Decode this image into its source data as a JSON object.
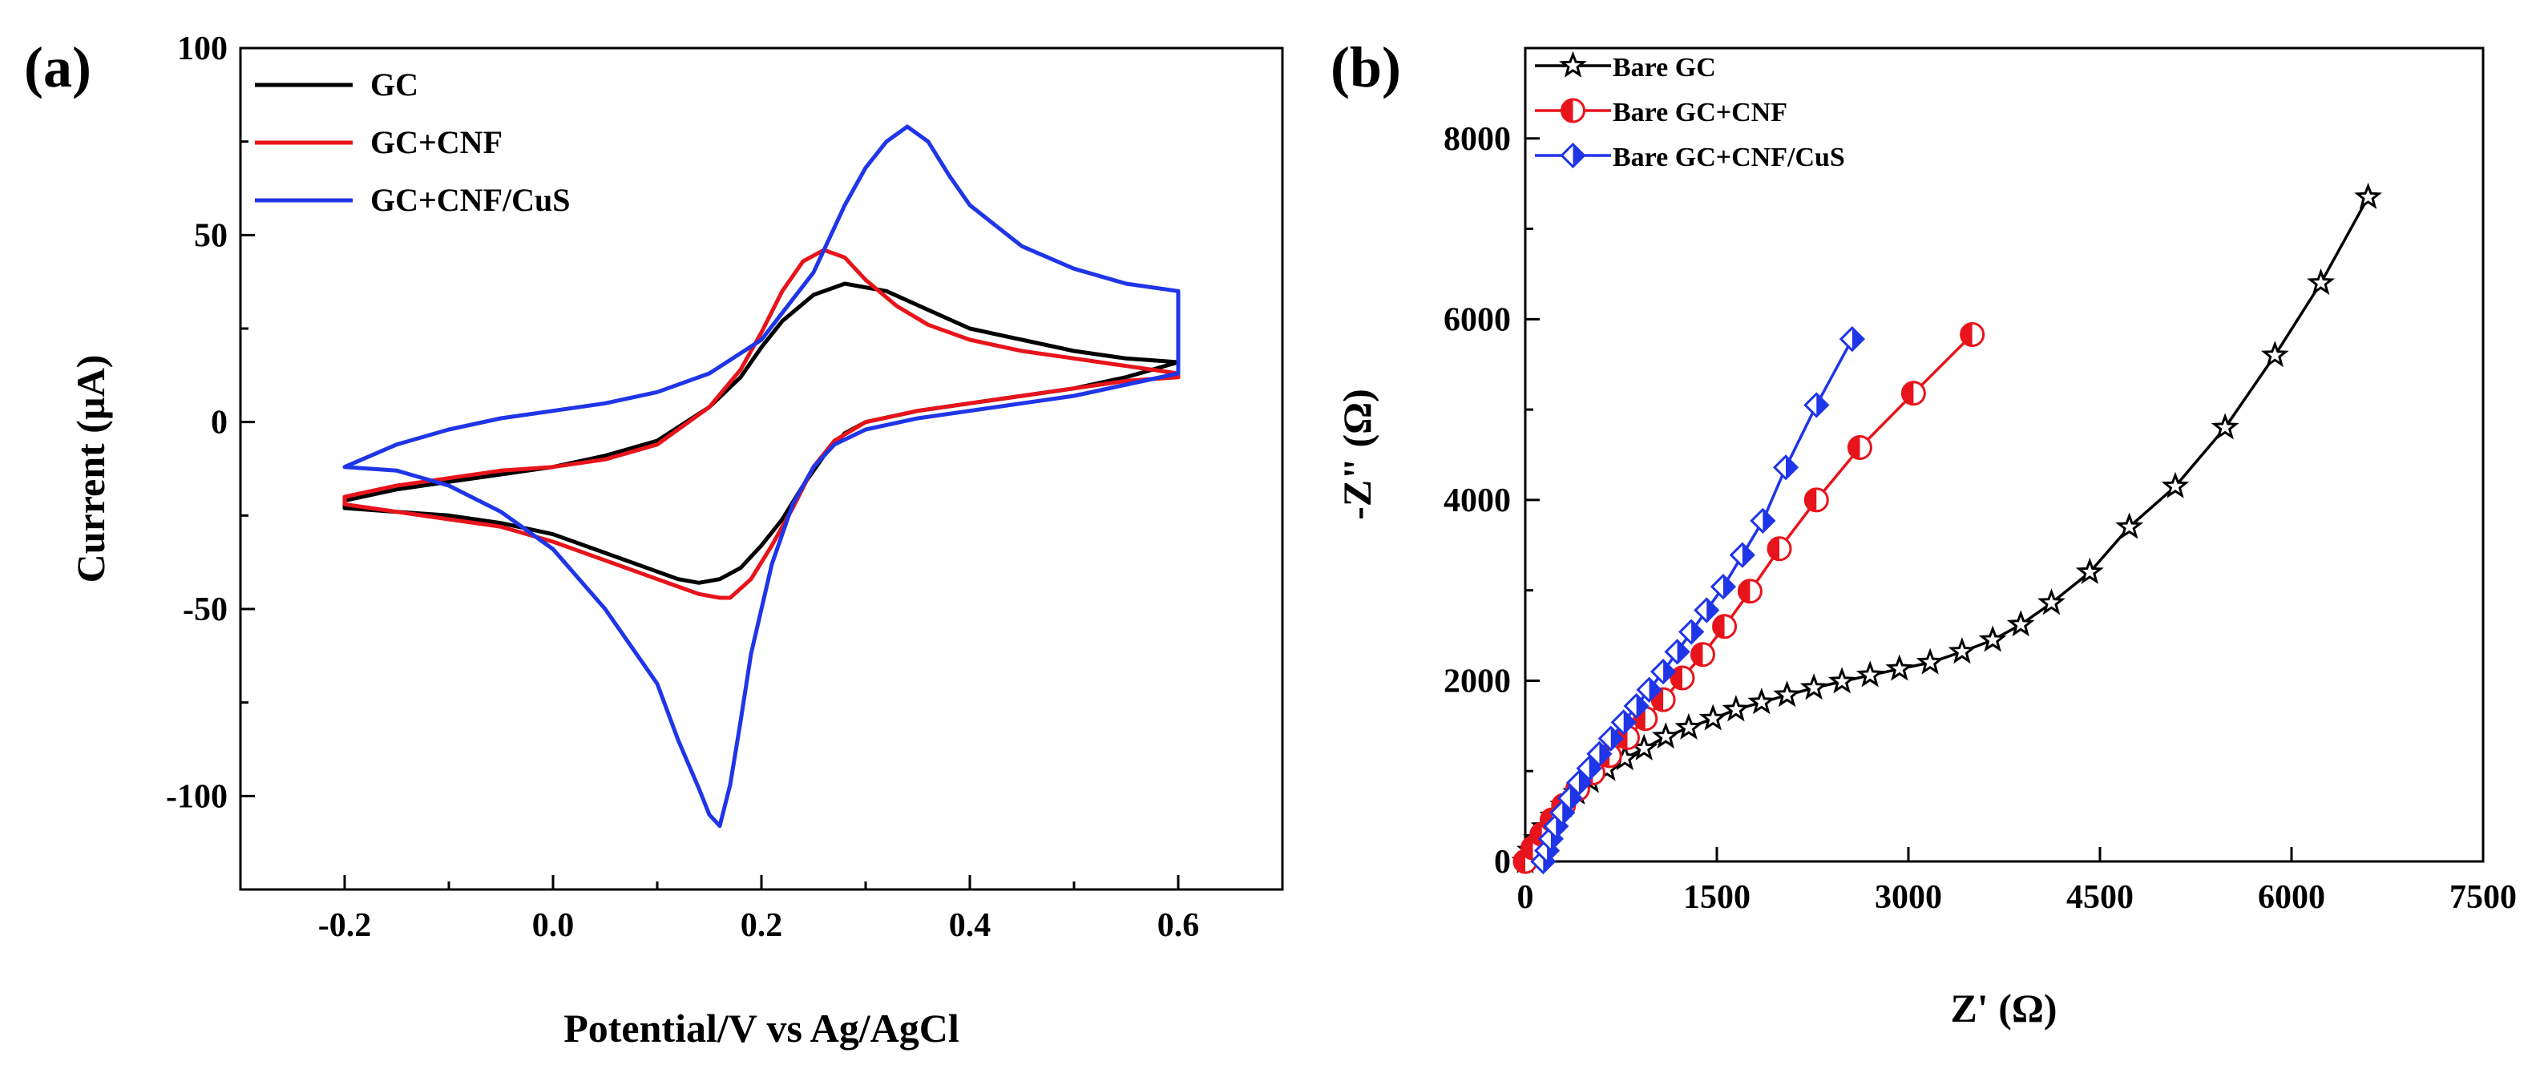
{
  "chart_data": [
    {
      "panel": "(a)",
      "type": "line",
      "title": "",
      "xlabel": "Potential/V vs Ag/AgCl",
      "ylabel": "Current (µA)",
      "xlim": [
        -0.3,
        0.7
      ],
      "ylim": [
        -125,
        100
      ],
      "xticks": [
        -0.2,
        0.0,
        0.2,
        0.4,
        0.6
      ],
      "xtick_labels": [
        "-0.2",
        "0.0",
        "0.2",
        "0.4",
        "0.6"
      ],
      "yticks": [
        -100,
        -50,
        0,
        50,
        100
      ],
      "ytick_labels": [
        "-100",
        "-50",
        "0",
        "50",
        "100"
      ],
      "grid": false,
      "legend_position": "top-left",
      "series": [
        {
          "name": "GC",
          "color": "#000000",
          "x": [
            -0.2,
            -0.15,
            -0.1,
            -0.05,
            0.0,
            0.05,
            0.1,
            0.15,
            0.18,
            0.2,
            0.22,
            0.25,
            0.28,
            0.32,
            0.36,
            0.4,
            0.45,
            0.5,
            0.55,
            0.6,
            0.6,
            0.55,
            0.5,
            0.45,
            0.4,
            0.35,
            0.3,
            0.28,
            0.26,
            0.24,
            0.22,
            0.2,
            0.18,
            0.16,
            0.14,
            0.12,
            0.1,
            0.05,
            0.0,
            -0.05,
            -0.1,
            -0.15,
            -0.2
          ],
          "y": [
            -21,
            -18,
            -16,
            -14,
            -12,
            -9,
            -5,
            4,
            12,
            20,
            27,
            34,
            37,
            35,
            30,
            25,
            22,
            19,
            17,
            16,
            16,
            12,
            9,
            7,
            5,
            3,
            0,
            -3,
            -9,
            -17,
            -26,
            -33,
            -39,
            -42,
            -43,
            -42,
            -40,
            -35,
            -30,
            -27,
            -25,
            -24,
            -23
          ]
        },
        {
          "name": "GC+CNF",
          "color": "#e8141b",
          "x": [
            -0.2,
            -0.15,
            -0.1,
            -0.05,
            0.0,
            0.05,
            0.1,
            0.15,
            0.18,
            0.2,
            0.22,
            0.24,
            0.26,
            0.28,
            0.3,
            0.33,
            0.36,
            0.4,
            0.45,
            0.5,
            0.55,
            0.6,
            0.6,
            0.55,
            0.5,
            0.45,
            0.4,
            0.35,
            0.3,
            0.27,
            0.25,
            0.23,
            0.21,
            0.19,
            0.17,
            0.16,
            0.14,
            0.12,
            0.1,
            0.05,
            0.0,
            -0.05,
            -0.1,
            -0.15,
            -0.2
          ],
          "y": [
            -20,
            -17,
            -15,
            -13,
            -12,
            -10,
            -6,
            4,
            14,
            24,
            35,
            43,
            46,
            44,
            38,
            31,
            26,
            22,
            19,
            17,
            15,
            13,
            12,
            11,
            9,
            7,
            5,
            3,
            0,
            -5,
            -12,
            -23,
            -33,
            -42,
            -47,
            -47,
            -46,
            -44,
            -42,
            -37,
            -32,
            -28,
            -26,
            -24,
            -22
          ]
        },
        {
          "name": "GC+CNF/CuS",
          "color": "#1f35e8",
          "x": [
            -0.2,
            -0.15,
            -0.1,
            -0.05,
            0.0,
            0.05,
            0.1,
            0.15,
            0.2,
            0.25,
            0.28,
            0.3,
            0.32,
            0.34,
            0.36,
            0.38,
            0.4,
            0.45,
            0.5,
            0.55,
            0.6,
            0.6,
            0.55,
            0.5,
            0.45,
            0.4,
            0.35,
            0.3,
            0.27,
            0.25,
            0.23,
            0.21,
            0.19,
            0.18,
            0.17,
            0.16,
            0.15,
            0.14,
            0.12,
            0.1,
            0.05,
            0.0,
            -0.05,
            -0.1,
            -0.15,
            -0.2
          ],
          "y": [
            -12,
            -6,
            -2,
            1,
            3,
            5,
            8,
            13,
            22,
            40,
            58,
            68,
            75,
            79,
            75,
            66,
            58,
            47,
            41,
            37,
            35,
            13,
            10,
            7,
            5,
            3,
            1,
            -2,
            -6,
            -12,
            -22,
            -38,
            -62,
            -80,
            -97,
            -108,
            -105,
            -98,
            -85,
            -70,
            -50,
            -34,
            -24,
            -17,
            -13,
            -12
          ]
        }
      ]
    },
    {
      "panel": "(b)",
      "type": "line",
      "title": "",
      "xlabel": "Z' (Ω)",
      "ylabel": "-Z\" (Ω)",
      "xlim": [
        0,
        7500
      ],
      "ylim": [
        0,
        9000
      ],
      "xticks": [
        0,
        1500,
        3000,
        4500,
        6000,
        7500
      ],
      "xtick_labels": [
        "0",
        "1500",
        "3000",
        "4500",
        "6000",
        "7500"
      ],
      "yticks": [
        0,
        2000,
        4000,
        6000,
        8000
      ],
      "ytick_labels": [
        "0",
        "2000",
        "4000",
        "6000",
        "8000"
      ],
      "grid": false,
      "legend_position": "top-left",
      "series": [
        {
          "name": "Bare GC",
          "color": "#000000",
          "marker": "star",
          "x": [
            0,
            40,
            90,
            150,
            220,
            300,
            400,
            510,
            640,
            780,
            930,
            1100,
            1280,
            1470,
            1650,
            1850,
            2050,
            2260,
            2480,
            2700,
            2930,
            3170,
            3420,
            3660,
            3880,
            4120,
            4420,
            4730,
            5090,
            5480,
            5870,
            6230,
            6600
          ],
          "y": [
            0,
            120,
            250,
            380,
            500,
            620,
            760,
            890,
            1020,
            1140,
            1250,
            1380,
            1480,
            1580,
            1680,
            1760,
            1840,
            1920,
            1990,
            2060,
            2130,
            2200,
            2320,
            2450,
            2620,
            2860,
            3200,
            3700,
            4150,
            4800,
            5600,
            6400,
            7350
          ]
        },
        {
          "name": "Bare GC+CNF",
          "color": "#e8141b",
          "marker": "circle-half-left",
          "x": [
            0,
            60,
            130,
            210,
            300,
            410,
            530,
            660,
            800,
            940,
            1080,
            1230,
            1390,
            1560,
            1760,
            1990,
            2280,
            2620,
            3040,
            3500
          ],
          "y": [
            0,
            150,
            300,
            460,
            620,
            800,
            980,
            1170,
            1370,
            1580,
            1790,
            2030,
            2290,
            2600,
            2990,
            3460,
            4000,
            4580,
            5180,
            5830
          ]
        },
        {
          "name": "Bare GC+CNF/CuS",
          "color": "#1f35e8",
          "marker": "diamond-half-right",
          "x": [
            140,
            170,
            200,
            240,
            290,
            350,
            420,
            500,
            580,
            670,
            770,
            870,
            970,
            1080,
            1190,
            1300,
            1420,
            1550,
            1700,
            1860,
            2040,
            2280,
            2560
          ],
          "y": [
            0,
            120,
            250,
            390,
            540,
            700,
            870,
            1030,
            1190,
            1360,
            1540,
            1720,
            1900,
            2100,
            2320,
            2540,
            2780,
            3040,
            3390,
            3770,
            4360,
            5050,
            5780
          ]
        }
      ]
    }
  ]
}
